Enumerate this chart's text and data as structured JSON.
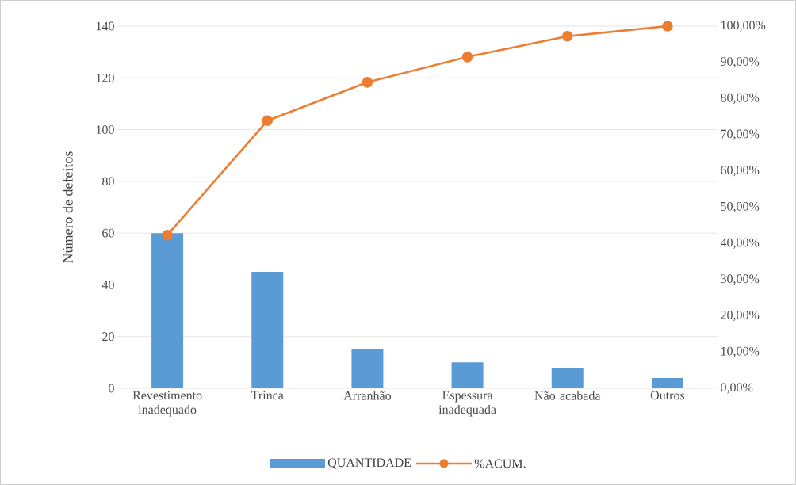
{
  "chart_data": {
    "type": "bar",
    "ylabel": "Número de defeitos",
    "categories": [
      "Revestimento inadequado",
      "Trinca",
      "Arranhão",
      "Espessura inadequada",
      "Não acabada",
      "Outros"
    ],
    "series": [
      {
        "name": "QUANTIDADE",
        "color": "#5b9bd5",
        "values": [
          60,
          45,
          15,
          10,
          8,
          4
        ]
      },
      {
        "name": "%ACUM.",
        "type": "line",
        "axis": "y2",
        "color": "#ed7d31",
        "values": [
          42.3,
          73.9,
          84.5,
          91.5,
          97.2,
          100
        ]
      }
    ],
    "ylim": [
      0,
      140
    ],
    "yticks": [
      0,
      20,
      40,
      60,
      80,
      100,
      120,
      140
    ],
    "y2lim": [
      0,
      100
    ],
    "y2ticks": [
      {
        "value": 0,
        "label": "0,00%"
      },
      {
        "value": 10,
        "label": "10,00%"
      },
      {
        "value": 20,
        "label": "20,00%"
      },
      {
        "value": 30,
        "label": "30,00%"
      },
      {
        "value": 40,
        "label": "40,00%"
      },
      {
        "value": 50,
        "label": "50,00%"
      },
      {
        "value": 60,
        "label": "60,00%"
      },
      {
        "value": 70,
        "label": "70,00%"
      },
      {
        "value": 80,
        "label": "80,00%"
      },
      {
        "value": 90,
        "label": "90,00%"
      },
      {
        "value": 100,
        "label": "100,00%"
      }
    ],
    "grid": "y",
    "legend": "bottom",
    "marker": "circle"
  }
}
